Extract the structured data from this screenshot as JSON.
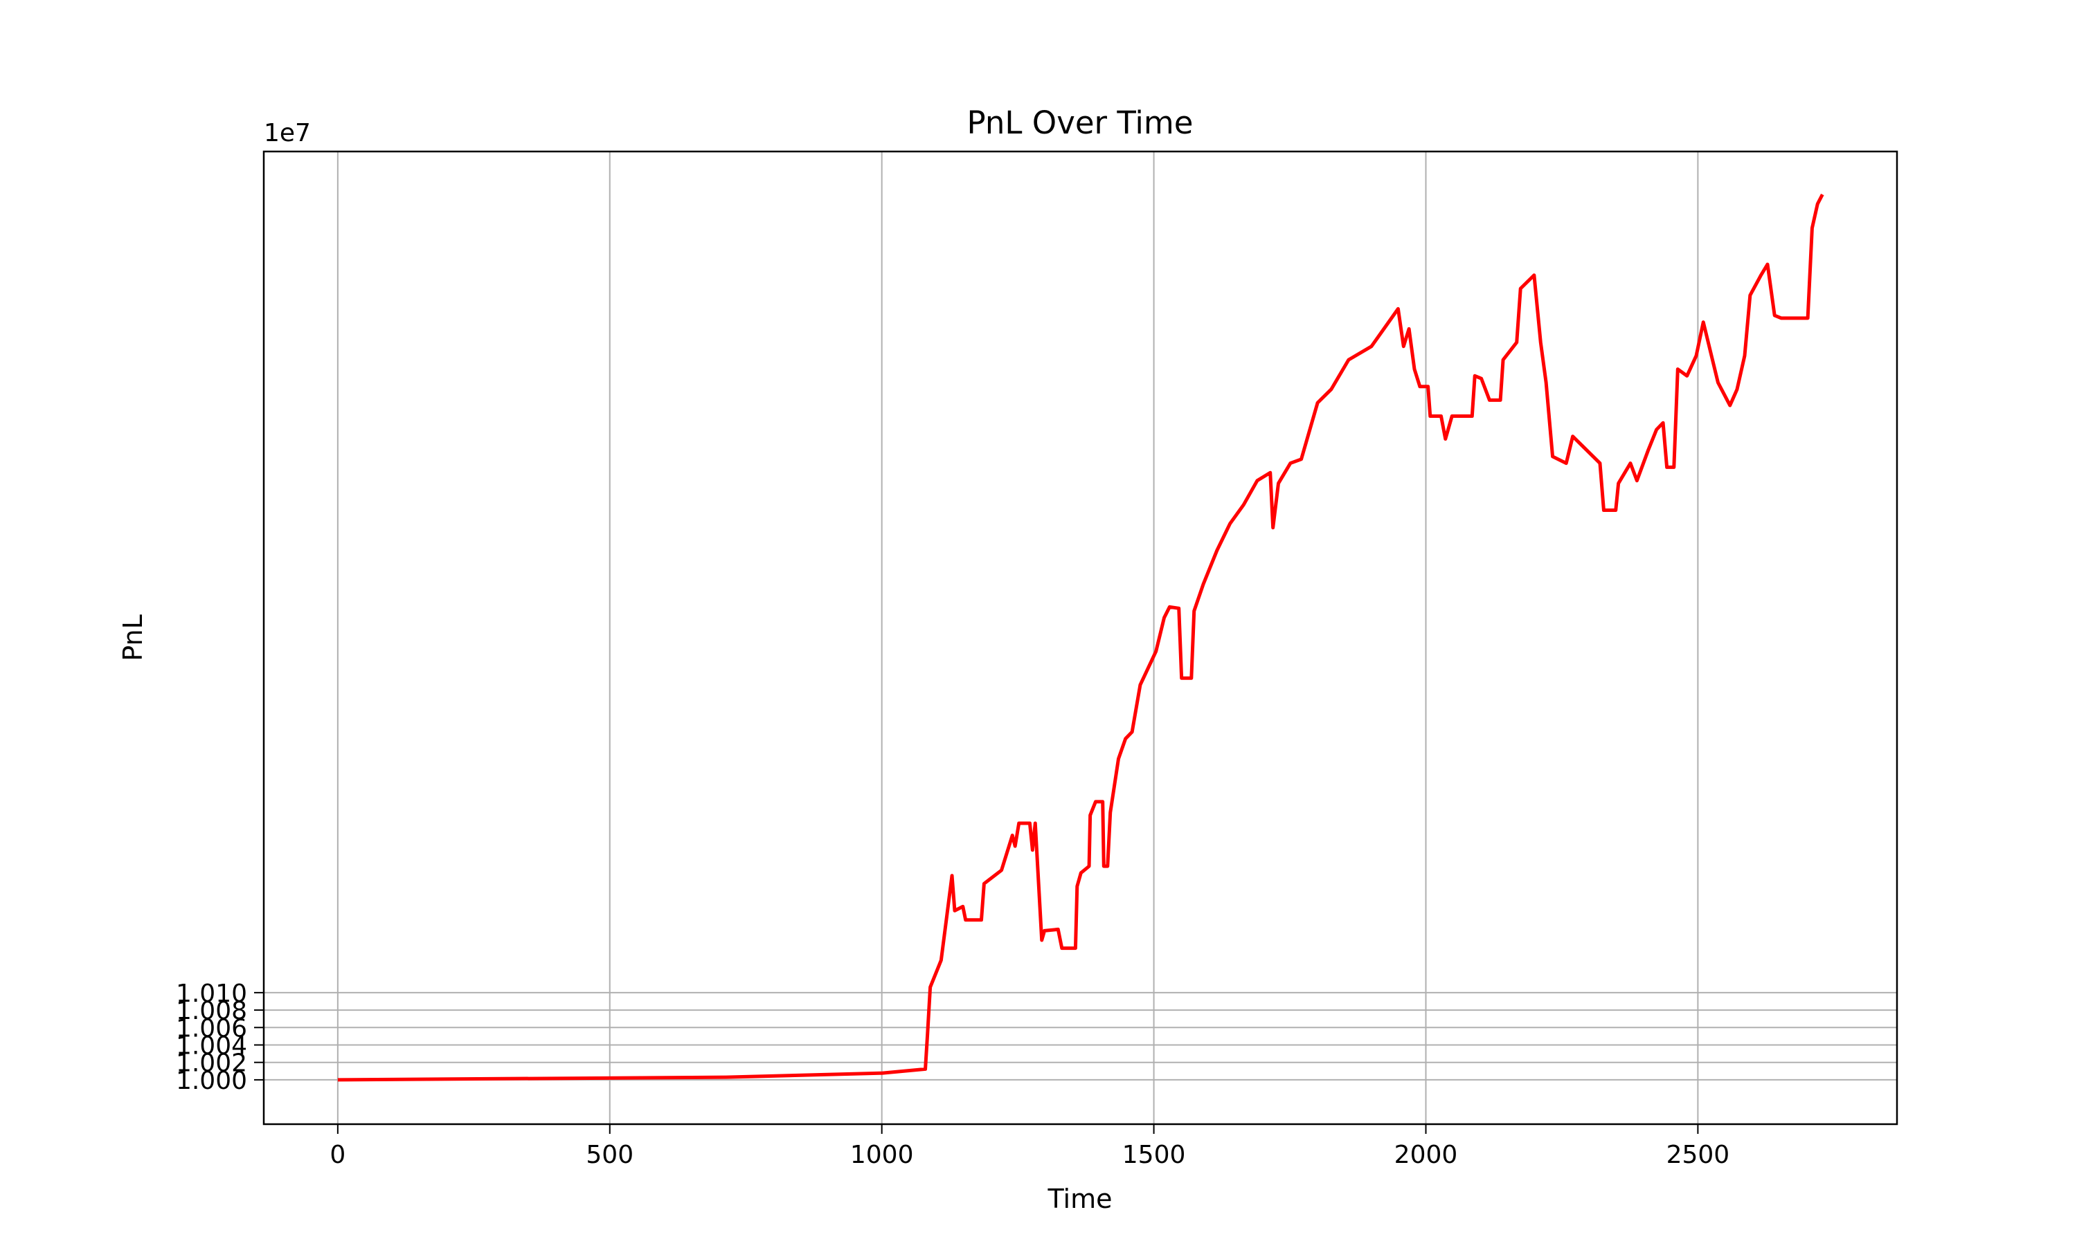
{
  "chart_data": {
    "type": "line",
    "title": "PnL Over Time",
    "x_label": "Time",
    "y_label": "PnL",
    "y_offset_label": "1e7",
    "color": "#ff0000",
    "grid": true,
    "xlim": [
      -136,
      2866
    ],
    "ylim": [
      9994915,
      10106471
    ],
    "xticks": [
      0,
      500,
      1000,
      1500,
      2000,
      2500
    ],
    "yticks": [
      {
        "value": 10000000,
        "label": "1.000"
      },
      {
        "value": 10002000,
        "label": "1.002"
      },
      {
        "value": 10004000,
        "label": "1.004"
      },
      {
        "value": 10006000,
        "label": "1.006"
      },
      {
        "value": 10008000,
        "label": "1.008"
      },
      {
        "value": 10010000,
        "label": "1.010"
      }
    ],
    "x": [
      0,
      714,
      1000,
      1080,
      1084,
      1089,
      1109,
      1117,
      1129,
      1134,
      1149,
      1154,
      1183,
      1188,
      1220,
      1240,
      1245,
      1252,
      1272,
      1277,
      1282,
      1294,
      1299,
      1324,
      1331,
      1356,
      1359,
      1366,
      1381,
      1383,
      1393,
      1406,
      1408,
      1415,
      1420,
      1435,
      1448,
      1460,
      1475,
      1504,
      1519,
      1529,
      1546,
      1551,
      1569,
      1574,
      1591,
      1616,
      1640,
      1665,
      1690,
      1714,
      1719,
      1729,
      1751,
      1771,
      1776,
      1801,
      1826,
      1858,
      1900,
      1949,
      1959,
      1969,
      1979,
      1989,
      2004,
      2008,
      2028,
      2036,
      2048,
      2085,
      2090,
      2102,
      2117,
      2137,
      2142,
      2167,
      2174,
      2199,
      2211,
      2221,
      2233,
      2258,
      2270,
      2295,
      2320,
      2327,
      2349,
      2354,
      2376,
      2388,
      2409,
      2424,
      2436,
      2443,
      2456,
      2463,
      2480,
      2497,
      2510,
      2525,
      2537,
      2559,
      2572,
      2586,
      2596,
      2616,
      2628,
      2641,
      2653,
      2665,
      2702,
      2710,
      2720,
      2729
    ],
    "values": [
      10000000,
      10000300,
      10000770,
      10001230,
      10005240,
      10010630,
      10013710,
      10017570,
      10023420,
      10019400,
      10019880,
      10018340,
      10018340,
      10022500,
      10024040,
      10028040,
      10026800,
      10029430,
      10029430,
      10026350,
      10029430,
      10016020,
      10017100,
      10017260,
      10015100,
      10015100,
      10022190,
      10023730,
      10024500,
      10030350,
      10031900,
      10031900,
      10024500,
      10024500,
      10030660,
      10036820,
      10039130,
      10039900,
      10045300,
      10049150,
      10053000,
      10054240,
      10054080,
      10046070,
      10046070,
      10053770,
      10056860,
      10060710,
      10063790,
      10065950,
      10068720,
      10069640,
      10063330,
      10068410,
      10070720,
      10071180,
      10072260,
      10077650,
      10079190,
      10082580,
      10084120,
      10088430,
      10084120,
      10086130,
      10081510,
      10079510,
      10079510,
      10076120,
      10076120,
      10073500,
      10076120,
      10076120,
      10080740,
      10080430,
      10077960,
      10077960,
      10082580,
      10084580,
      10090750,
      10092290,
      10084580,
      10079970,
      10071490,
      10070720,
      10073800,
      10072260,
      10070720,
      10065330,
      10065330,
      10068410,
      10070720,
      10068720,
      10072260,
      10074580,
      10075350,
      10070260,
      10070260,
      10081510,
      10080740,
      10083050,
      10086900,
      10083050,
      10079970,
      10077350,
      10079190,
      10083050,
      10089980,
      10092290,
      10093530,
      10087670,
      10087360,
      10087360,
      10087360,
      10097690,
      10100460,
      10101540
    ]
  }
}
